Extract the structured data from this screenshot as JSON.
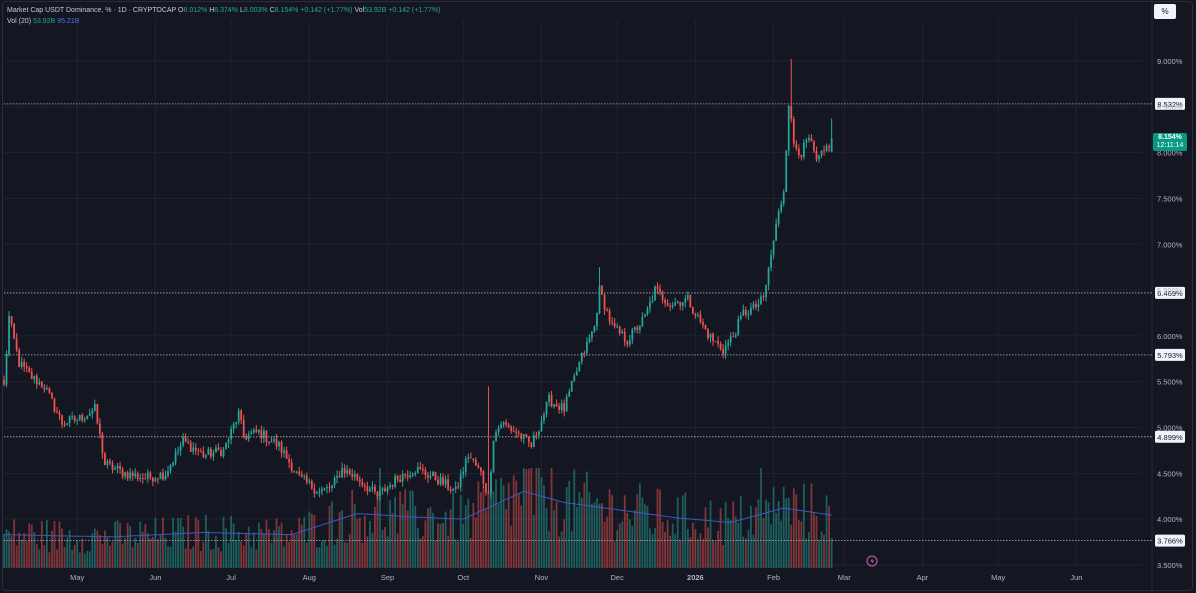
{
  "legend": {
    "title": "Market Cap USDT Dominance, % · 1D · CRYPTOCAP",
    "open_label": "O",
    "open": "8.012%",
    "high_label": "H",
    "high": "8.374%",
    "low_label": "L",
    "low": "8.003%",
    "close_label": "C",
    "close": "8.154%",
    "change": "+0.142 (+1.77%)",
    "vol_label": "Vol",
    "vol_value": "53.92B",
    "vol_change": "+0.142 (+1.77%)",
    "vol_study_label": "Vol (20)",
    "vol_study_value": "53.92B",
    "vol_ma_value": "95.21B"
  },
  "toolbar": {
    "percent_button_label": "%"
  },
  "last_price": {
    "value": "8.154%",
    "countdown": "12:11:14"
  },
  "colors": {
    "background": "#141722",
    "up": "#26a69a",
    "down": "#ef5350",
    "volume_ma": "#3b5bbf",
    "level_line": "#b2b5be",
    "last_price_tag": "#089981"
  },
  "chart_data": {
    "type": "candlestick",
    "title": "Market Cap USDT Dominance, % · 1D · CRYPTOCAP",
    "ylabel": "%",
    "ylim": [
      3.5,
      9.3
    ],
    "grid": true,
    "y_ticks": [
      "9.000%",
      "8.500%",
      "8.000%",
      "7.500%",
      "7.000%",
      "6.500%",
      "6.000%",
      "5.500%",
      "5.000%",
      "4.500%",
      "4.000%",
      "3.500%"
    ],
    "x_ticks": [
      "May",
      "Jun",
      "Jul",
      "Aug",
      "Sep",
      "Oct",
      "Nov",
      "Dec",
      "2026",
      "Feb",
      "Mar",
      "Apr",
      "May",
      "Jun"
    ],
    "x_range": [
      "2025-04-02",
      "2026-06-27"
    ],
    "horizontal_levels": [
      "8.532%",
      "6.469%",
      "5.793%",
      "4.899%",
      "3.766%"
    ],
    "price_anchors": [
      {
        "date": "2025-04-02",
        "value": 5.45
      },
      {
        "date": "2025-04-04",
        "value": 6.2
      },
      {
        "date": "2025-04-08",
        "value": 5.7
      },
      {
        "date": "2025-04-13",
        "value": 5.55
      },
      {
        "date": "2025-04-18",
        "value": 5.45
      },
      {
        "date": "2025-04-25",
        "value": 5.05
      },
      {
        "date": "2025-05-02",
        "value": 5.1
      },
      {
        "date": "2025-05-08",
        "value": 5.2
      },
      {
        "date": "2025-05-12",
        "value": 4.6
      },
      {
        "date": "2025-05-20",
        "value": 4.5
      },
      {
        "date": "2025-05-28",
        "value": 4.45
      },
      {
        "date": "2025-06-05",
        "value": 4.5
      },
      {
        "date": "2025-06-12",
        "value": 4.85
      },
      {
        "date": "2025-06-20",
        "value": 4.7
      },
      {
        "date": "2025-06-28",
        "value": 4.75
      },
      {
        "date": "2025-07-04",
        "value": 5.15
      },
      {
        "date": "2025-07-06",
        "value": 4.9
      },
      {
        "date": "2025-07-12",
        "value": 4.95
      },
      {
        "date": "2025-07-20",
        "value": 4.8
      },
      {
        "date": "2025-07-28",
        "value": 4.45
      },
      {
        "date": "2025-08-05",
        "value": 4.3
      },
      {
        "date": "2025-08-10",
        "value": 4.35
      },
      {
        "date": "2025-08-14",
        "value": 4.55
      },
      {
        "date": "2025-08-20",
        "value": 4.45
      },
      {
        "date": "2025-08-28",
        "value": 4.25
      },
      {
        "date": "2025-09-05",
        "value": 4.45
      },
      {
        "date": "2025-09-12",
        "value": 4.55
      },
      {
        "date": "2025-09-20",
        "value": 4.45
      },
      {
        "date": "2025-09-28",
        "value": 4.3
      },
      {
        "date": "2025-10-03",
        "value": 4.7
      },
      {
        "date": "2025-10-08",
        "value": 4.5
      },
      {
        "date": "2025-10-11",
        "value": 4.25
      },
      {
        "date": "2025-10-13",
        "value": 4.9
      },
      {
        "date": "2025-10-16",
        "value": 5.05
      },
      {
        "date": "2025-10-22",
        "value": 4.95
      },
      {
        "date": "2025-10-28",
        "value": 4.8
      },
      {
        "date": "2025-11-04",
        "value": 5.3
      },
      {
        "date": "2025-11-10",
        "value": 5.2
      },
      {
        "date": "2025-11-16",
        "value": 5.7
      },
      {
        "date": "2025-11-22",
        "value": 6.1
      },
      {
        "date": "2025-11-24",
        "value": 6.5
      },
      {
        "date": "2025-11-29",
        "value": 6.1
      },
      {
        "date": "2025-12-05",
        "value": 5.95
      },
      {
        "date": "2025-12-12",
        "value": 6.2
      },
      {
        "date": "2025-12-16",
        "value": 6.5
      },
      {
        "date": "2025-12-22",
        "value": 6.35
      },
      {
        "date": "2025-12-29",
        "value": 6.4
      },
      {
        "date": "2026-01-04",
        "value": 6.1
      },
      {
        "date": "2026-01-08",
        "value": 5.95
      },
      {
        "date": "2026-01-12",
        "value": 5.85
      },
      {
        "date": "2026-01-16",
        "value": 6.0
      },
      {
        "date": "2026-01-20",
        "value": 6.25
      },
      {
        "date": "2026-01-24",
        "value": 6.3
      },
      {
        "date": "2026-01-28",
        "value": 6.4
      },
      {
        "date": "2026-02-02",
        "value": 7.2
      },
      {
        "date": "2026-02-05",
        "value": 7.6
      },
      {
        "date": "2026-02-07",
        "value": 8.55
      },
      {
        "date": "2026-02-09",
        "value": 8.1
      },
      {
        "date": "2026-02-12",
        "value": 8.0
      },
      {
        "date": "2026-02-15",
        "value": 8.15
      },
      {
        "date": "2026-02-18",
        "value": 7.9
      },
      {
        "date": "2026-02-21",
        "value": 8.0
      },
      {
        "date": "2026-02-24",
        "value": 8.154
      }
    ],
    "key_highs": [
      {
        "date": "2026-02-08",
        "value": 9.02
      },
      {
        "date": "2025-11-24",
        "value": 6.75
      },
      {
        "date": "2025-10-11",
        "value": 5.45
      }
    ],
    "volume": {
      "unit": "B",
      "ma_length": 20,
      "ma_anchors": [
        {
          "date": "2025-04-02",
          "value": 60
        },
        {
          "date": "2025-05-15",
          "value": 56
        },
        {
          "date": "2025-06-20",
          "value": 64
        },
        {
          "date": "2025-07-25",
          "value": 60
        },
        {
          "date": "2025-08-20",
          "value": 98
        },
        {
          "date": "2025-09-10",
          "value": 92
        },
        {
          "date": "2025-10-01",
          "value": 88
        },
        {
          "date": "2025-10-25",
          "value": 138
        },
        {
          "date": "2025-11-10",
          "value": 118
        },
        {
          "date": "2025-12-01",
          "value": 105
        },
        {
          "date": "2025-12-25",
          "value": 90
        },
        {
          "date": "2026-01-15",
          "value": 82
        },
        {
          "date": "2026-02-05",
          "value": 108
        },
        {
          "date": "2026-02-24",
          "value": 95.21
        }
      ],
      "last": 53.92
    }
  }
}
